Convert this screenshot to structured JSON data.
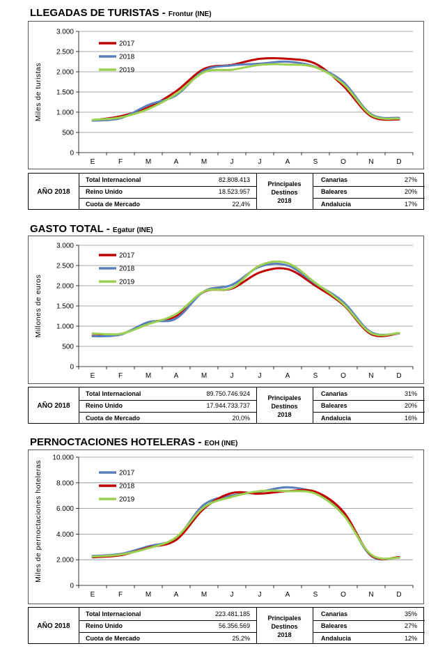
{
  "sections": [
    {
      "title": "LLEGADAS DE TURISTAS",
      "source": "Frontur (INE)",
      "summary": {
        "year_label": "AÑO 2018",
        "rows": [
          {
            "label": "Total Internacional",
            "value": "82.808.413"
          },
          {
            "label": "Reino Unido",
            "value": "18.523.957"
          },
          {
            "label": "Cuota de Mercado",
            "value": "22,4%"
          }
        ],
        "destinos_label": [
          "Principales",
          "Destinos",
          "2018"
        ],
        "destinos": [
          {
            "name": "Canarias",
            "pct": "27%"
          },
          {
            "name": "Baleares",
            "pct": "20%"
          },
          {
            "name": "Andalucia",
            "pct": "17%"
          }
        ]
      }
    },
    {
      "title": "GASTO TOTAL",
      "source": "Egatur (INE)",
      "summary": {
        "year_label": "AÑO 2018",
        "rows": [
          {
            "label": "Total Internacional",
            "value": "89.750.746.924"
          },
          {
            "label": "Reino Unido",
            "value": "17.944.733.737"
          },
          {
            "label": "Cuota de Mercado",
            "value": "20,0%"
          }
        ],
        "destinos_label": [
          "Principales",
          "Destinos",
          "2018"
        ],
        "destinos": [
          {
            "name": "Canarias",
            "pct": "31%"
          },
          {
            "name": "Baleares",
            "pct": "20%"
          },
          {
            "name": "Andalucia",
            "pct": "16%"
          }
        ]
      }
    },
    {
      "title": "PERNOCTACIONES HOTELERAS",
      "source": "EOH (INE)",
      "summary": {
        "year_label": "AÑO 2018",
        "rows": [
          {
            "label": "Total Internacional",
            "value": "223.481.185"
          },
          {
            "label": "Reino Unido",
            "value": "56.356.569"
          },
          {
            "label": "Cuota de Mercado",
            "value": "25,2%"
          }
        ],
        "destinos_label": [
          "Principales",
          "Destinos",
          "2018"
        ],
        "destinos": [
          {
            "name": "Canarias",
            "pct": "35%"
          },
          {
            "name": "Baleares",
            "pct": "27%"
          },
          {
            "name": "Andalucia",
            "pct": "12%"
          }
        ]
      }
    }
  ],
  "chart_data": [
    {
      "type": "line",
      "ylabel": "Miles de turistas",
      "ylim": [
        0,
        3000
      ],
      "yticks": [
        0,
        500,
        1000,
        1500,
        2000,
        2500,
        3000
      ],
      "ytick_labels": [
        "0",
        "500",
        "1.000",
        "1.500",
        "2.000",
        "2.500",
        "3.000"
      ],
      "grid": true,
      "legend": "top-left",
      "categories": [
        "E",
        "F",
        "M",
        "A",
        "M",
        "J",
        "J",
        "A",
        "S",
        "O",
        "N",
        "D"
      ],
      "series": [
        {
          "name": "2017",
          "color": "#c00000",
          "values": [
            800,
            900,
            1120,
            1520,
            2070,
            2170,
            2320,
            2320,
            2200,
            1650,
            900,
            820
          ]
        },
        {
          "name": "2018",
          "color": "#5b7fbd",
          "values": [
            790,
            850,
            1180,
            1420,
            2030,
            2160,
            2200,
            2250,
            2120,
            1750,
            950,
            860
          ]
        },
        {
          "name": "2019",
          "color": "#9bd050",
          "values": [
            810,
            870,
            1080,
            1450,
            1990,
            2050,
            2170,
            2180,
            2110,
            1700,
            930,
            840
          ]
        }
      ]
    },
    {
      "type": "line",
      "ylabel": "Millones de euros",
      "ylim": [
        0,
        3000
      ],
      "yticks": [
        0,
        500,
        1000,
        1500,
        2000,
        2500,
        3000
      ],
      "ytick_labels": [
        "0",
        "500",
        "1.000",
        "1.500",
        "2.000",
        "2.500",
        "3.000"
      ],
      "grid": true,
      "legend": "top-left",
      "categories": [
        "E",
        "F",
        "M",
        "A",
        "M",
        "J",
        "J",
        "A",
        "S",
        "O",
        "N",
        "D"
      ],
      "series": [
        {
          "name": "2017",
          "color": "#c00000",
          "values": [
            760,
            800,
            1080,
            1250,
            1850,
            1930,
            2330,
            2410,
            2000,
            1530,
            800,
            820
          ]
        },
        {
          "name": "2018",
          "color": "#5b7fbd",
          "values": [
            750,
            790,
            1100,
            1190,
            1860,
            2020,
            2470,
            2500,
            2050,
            1600,
            850,
            820
          ]
        },
        {
          "name": "2019",
          "color": "#9bd050",
          "values": [
            820,
            810,
            1050,
            1300,
            1860,
            1950,
            2500,
            2560,
            2070,
            1550,
            830,
            830
          ]
        }
      ]
    },
    {
      "type": "line",
      "ylabel": "Miles de pernoctaciones hoteleras",
      "ylim": [
        0,
        10000
      ],
      "yticks": [
        0,
        2000,
        4000,
        6000,
        8000,
        10000
      ],
      "ytick_labels": [
        "0",
        "2.000",
        "4.000",
        "6.000",
        "8.000",
        "10.000"
      ],
      "grid": true,
      "legend": "top-left",
      "categories": [
        "E",
        "F",
        "M",
        "A",
        "M",
        "J",
        "J",
        "A",
        "S",
        "O",
        "N",
        "D"
      ],
      "series": [
        {
          "name": "2017",
          "color": "#5b7fbd",
          "values": [
            2300,
            2450,
            3050,
            3700,
            6300,
            7000,
            7300,
            7650,
            7200,
            5600,
            2300,
            2200
          ]
        },
        {
          "name": "2018",
          "color": "#c00000",
          "values": [
            2200,
            2350,
            2950,
            3550,
            6000,
            7200,
            7150,
            7350,
            7300,
            5750,
            2350,
            2200
          ]
        },
        {
          "name": "2019",
          "color": "#9bd050",
          "values": [
            2250,
            2400,
            2900,
            3750,
            6100,
            6900,
            7350,
            7350,
            7150,
            5500,
            2400,
            2150
          ]
        }
      ]
    }
  ]
}
